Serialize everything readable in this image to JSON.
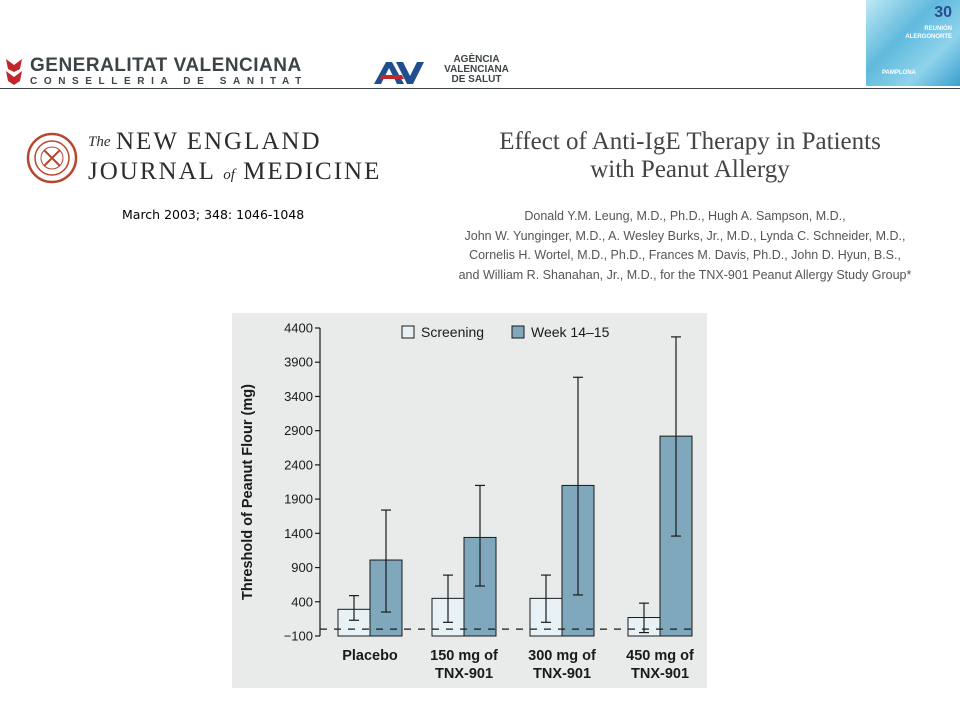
{
  "header": {
    "gv_title": "GENERALITAT  VALENCIANA",
    "gv_subtitle": "CONSELLERIA DE SANITAT",
    "avs_lines": [
      "AGÈNCIA",
      "VALENCIANA",
      "DE SALUT"
    ],
    "avs_mark_text": "A",
    "badge_number": "30",
    "badge_line1": "REUNIÓN",
    "badge_line2": "ALERGONORTE",
    "badge_line3": "PAMPLONA"
  },
  "journal": {
    "the": "The",
    "line1": "NEW ENGLAND",
    "line2_a": "JOURNAL",
    "line2_of": "of",
    "line2_b": "MEDICINE",
    "citation": "March 2003; 348: 1046-1048"
  },
  "article": {
    "title_lines": [
      "Effect of Anti-IgE Therapy in Patients",
      "with Peanut Allergy"
    ],
    "author_lines": [
      "Donald Y.M. Leung, M.D., Ph.D., Hugh A. Sampson, M.D.,",
      "John W. Yunginger, M.D., A. Wesley Burks, Jr., M.D., Lynda C. Schneider, M.D.,",
      "Cornelis H. Wortel, M.D., Ph.D., Frances M. Davis, Ph.D., John D. Hyun, B.S.,",
      "and William R. Shanahan, Jr., M.D., for the TNX-901 Peanut Allergy Study Group*"
    ]
  },
  "chart_data": {
    "type": "bar",
    "ylabel": "Threshold of Peanut Flour (mg)",
    "ylim": [
      -100,
      4400
    ],
    "yticks": [
      -100,
      400,
      900,
      1400,
      1900,
      2400,
      2900,
      3400,
      3900,
      4400
    ],
    "ytick_labels": [
      "−100",
      "400",
      "900",
      "1400",
      "1900",
      "2400",
      "2900",
      "3400",
      "3900",
      "4400"
    ],
    "categories": [
      [
        "Placebo"
      ],
      [
        "150 mg of",
        "TNX-901"
      ],
      [
        "300 mg of",
        "TNX-901"
      ],
      [
        "450 mg of",
        "TNX-901"
      ]
    ],
    "series": [
      {
        "name": "Screening",
        "color": "#e8f1f5",
        "values": [
          290,
          450,
          450,
          170
        ],
        "err_low": [
          130,
          100,
          100,
          -50
        ],
        "err_high": [
          490,
          790,
          790,
          380
        ]
      },
      {
        "name": "Week 14–15",
        "color": "#7fa8bd",
        "values": [
          1010,
          1340,
          2100,
          2820
        ],
        "err_low": [
          250,
          630,
          500,
          1360
        ],
        "err_high": [
          1740,
          2100,
          3680,
          4270
        ]
      }
    ],
    "legend_position": "top",
    "grid": false,
    "baseline_dashed": true
  },
  "colors": {
    "panel_bg": "#e9eaea",
    "text_dark": "#3d4447",
    "bar_outline": "#1a1a1a"
  }
}
